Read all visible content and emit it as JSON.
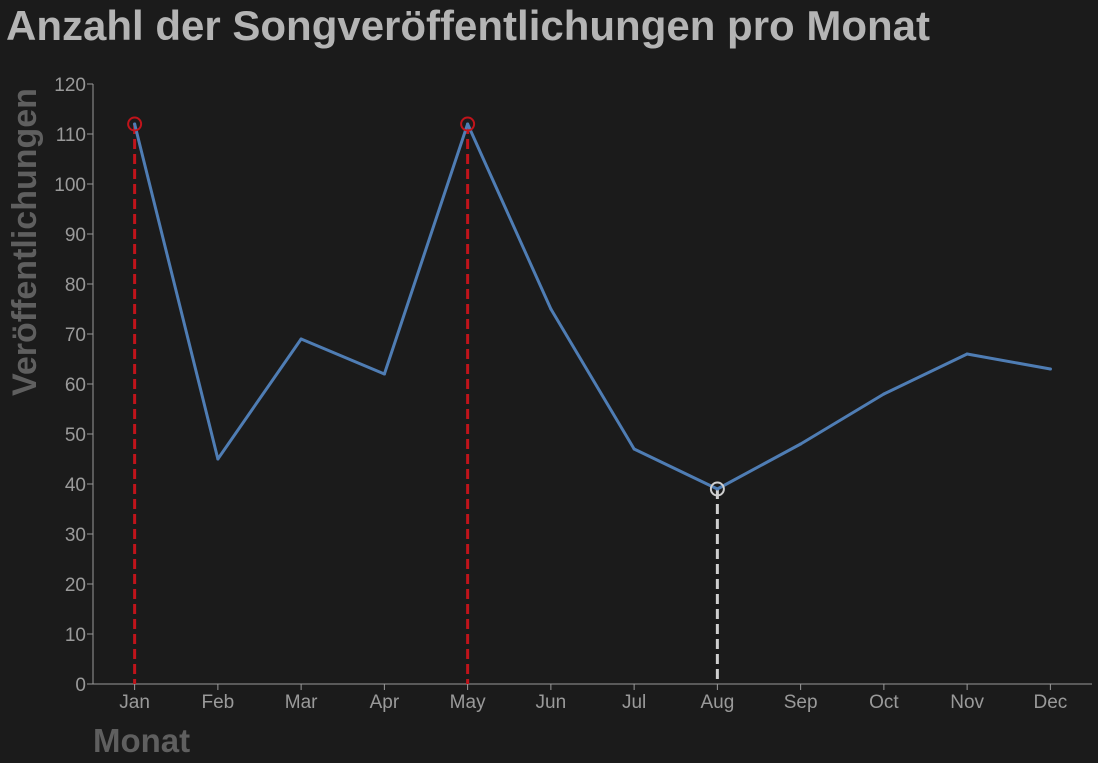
{
  "chart_data": {
    "type": "line",
    "title": "Anzahl der Songveröffentlichungen pro Monat",
    "xlabel": "Monat",
    "ylabel": "Veröffentlichungen",
    "categories": [
      "Jan",
      "Feb",
      "Mar",
      "Apr",
      "May",
      "Jun",
      "Jul",
      "Aug",
      "Sep",
      "Oct",
      "Nov",
      "Dec"
    ],
    "series": [
      {
        "values": [
          112,
          45,
          69,
          62,
          112,
          75,
          47,
          39,
          48,
          58,
          66,
          63
        ]
      }
    ],
    "ylim": [
      0,
      120
    ],
    "yticks": [
      0,
      10,
      20,
      30,
      40,
      50,
      60,
      70,
      80,
      90,
      100,
      110,
      120
    ],
    "grid": false,
    "highlights": [
      {
        "category": "Jan",
        "value": 112,
        "kind": "max",
        "color": "#c0141b"
      },
      {
        "category": "May",
        "value": 112,
        "kind": "max",
        "color": "#c0141b"
      },
      {
        "category": "Aug",
        "value": 39,
        "kind": "min",
        "color": "#cfcfcf"
      }
    ],
    "colors": {
      "background": "#1b1b1b",
      "line": "#4f7db4",
      "title": "#b4b4b4",
      "axis_title": "#5f5f5f",
      "ticks": "#9a9a9a",
      "axis": "#9a9a9a"
    }
  }
}
